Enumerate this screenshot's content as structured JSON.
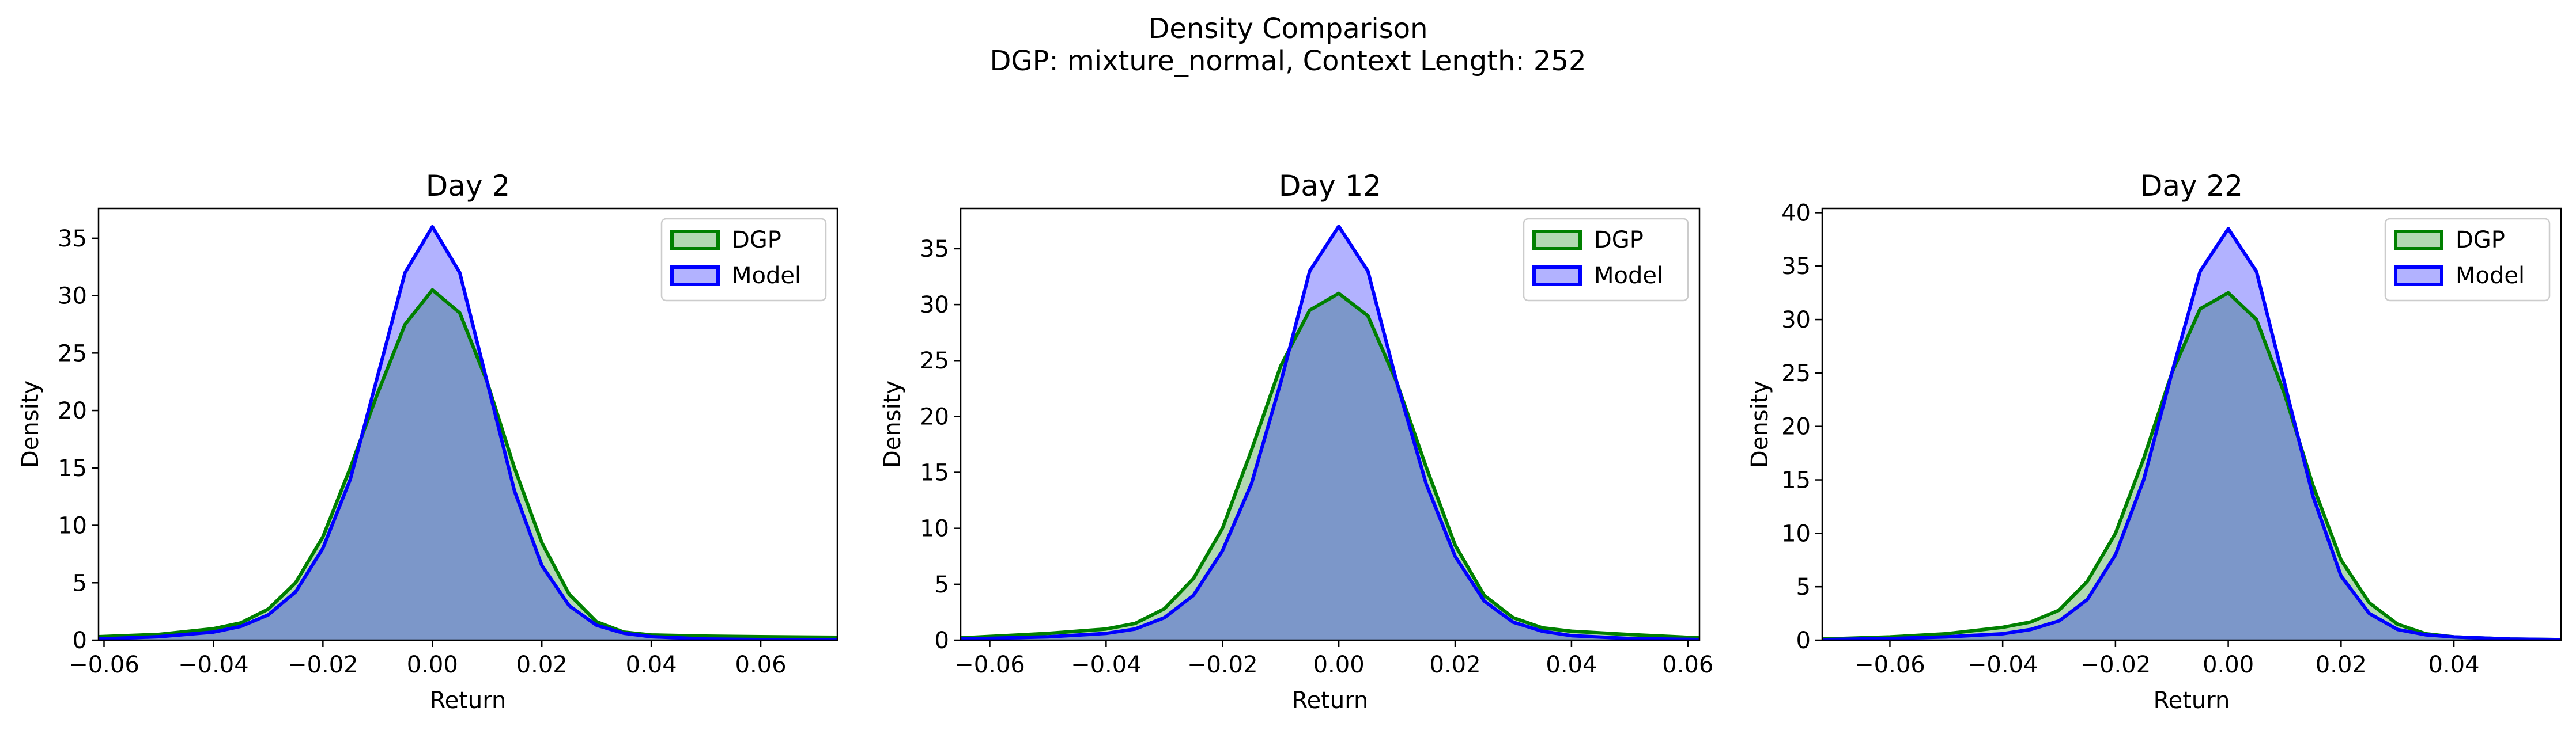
{
  "figure": {
    "title_line1": "Density Comparison",
    "title_line2": "DGP: mixture_normal, Context Length: 252"
  },
  "colors": {
    "dgp_line": "#008000",
    "dgp_fill": "#b2d8b2",
    "model_line": "#0000ff",
    "model_fill": "#b2b2ff",
    "overlap_fill": "#7f98c8"
  },
  "chart_data": [
    {
      "type": "area",
      "title": "Day 2",
      "xlabel": "Return",
      "ylabel": "Density",
      "xlim": [
        -0.061,
        0.074
      ],
      "ylim": [
        0,
        37.6
      ],
      "xticks": [
        -0.06,
        -0.04,
        -0.02,
        0.0,
        0.02,
        0.04,
        0.06
      ],
      "xtick_labels": [
        "−0.06",
        "−0.04",
        "−0.02",
        "0.00",
        "0.02",
        "0.04",
        "0.06"
      ],
      "yticks": [
        0,
        5,
        10,
        15,
        20,
        25,
        30,
        35
      ],
      "ytick_labels": [
        "0",
        "5",
        "10",
        "15",
        "20",
        "25",
        "30",
        "35"
      ],
      "legend": {
        "position": "top-right",
        "entries": [
          "DGP",
          "Model"
        ]
      },
      "series": [
        {
          "name": "DGP",
          "x": [
            -0.061,
            -0.05,
            -0.04,
            -0.035,
            -0.03,
            -0.025,
            -0.02,
            -0.015,
            -0.01,
            -0.005,
            0,
            0.005,
            0.01,
            0.015,
            0.02,
            0.025,
            0.03,
            0.035,
            0.04,
            0.05,
            0.06,
            0.074
          ],
          "y": [
            0.3,
            0.5,
            1.0,
            1.5,
            2.7,
            5.0,
            9.0,
            15.0,
            21.5,
            27.5,
            30.5,
            28.5,
            22.5,
            15.0,
            8.5,
            4.0,
            1.6,
            0.7,
            0.45,
            0.35,
            0.3,
            0.25
          ]
        },
        {
          "name": "Model",
          "x": [
            -0.061,
            -0.05,
            -0.04,
            -0.035,
            -0.03,
            -0.025,
            -0.02,
            -0.015,
            -0.01,
            -0.005,
            0,
            0.005,
            0.01,
            0.015,
            0.02,
            0.025,
            0.03,
            0.035,
            0.04,
            0.05,
            0.06,
            0.074
          ],
          "y": [
            0.1,
            0.3,
            0.7,
            1.2,
            2.2,
            4.2,
            8.0,
            14.0,
            23.0,
            32.0,
            36.0,
            32.0,
            22.5,
            13.0,
            6.5,
            3.0,
            1.3,
            0.6,
            0.3,
            0.1,
            0.05,
            0.02
          ]
        }
      ]
    },
    {
      "type": "area",
      "title": "Day 12",
      "xlabel": "Return",
      "ylabel": "Density",
      "xlim": [
        -0.065,
        0.062
      ],
      "ylim": [
        0,
        38.6
      ],
      "xticks": [
        -0.06,
        -0.04,
        -0.02,
        0.0,
        0.02,
        0.04,
        0.06
      ],
      "xtick_labels": [
        "−0.06",
        "−0.04",
        "−0.02",
        "0.00",
        "0.02",
        "0.04",
        "0.06"
      ],
      "yticks": [
        0,
        5,
        10,
        15,
        20,
        25,
        30,
        35
      ],
      "ytick_labels": [
        "0",
        "5",
        "10",
        "15",
        "20",
        "25",
        "30",
        "35"
      ],
      "legend": {
        "position": "top-right",
        "entries": [
          "DGP",
          "Model"
        ]
      },
      "series": [
        {
          "name": "DGP",
          "x": [
            -0.065,
            -0.05,
            -0.04,
            -0.035,
            -0.03,
            -0.025,
            -0.02,
            -0.015,
            -0.01,
            -0.005,
            0,
            0.005,
            0.01,
            0.015,
            0.02,
            0.025,
            0.03,
            0.035,
            0.04,
            0.05,
            0.062
          ],
          "y": [
            0.2,
            0.6,
            1.0,
            1.5,
            2.8,
            5.5,
            10.0,
            17.0,
            24.5,
            29.5,
            31.0,
            29.0,
            23.0,
            15.5,
            8.5,
            4.0,
            2.0,
            1.1,
            0.8,
            0.5,
            0.2
          ]
        },
        {
          "name": "Model",
          "x": [
            -0.065,
            -0.05,
            -0.04,
            -0.035,
            -0.03,
            -0.025,
            -0.02,
            -0.015,
            -0.01,
            -0.005,
            0,
            0.005,
            0.01,
            0.015,
            0.02,
            0.025,
            0.03,
            0.035,
            0.04,
            0.05,
            0.062
          ],
          "y": [
            0.1,
            0.3,
            0.6,
            1.0,
            2.0,
            4.0,
            8.0,
            14.0,
            23.0,
            33.0,
            37.0,
            33.0,
            23.0,
            14.0,
            7.5,
            3.5,
            1.6,
            0.8,
            0.4,
            0.15,
            0.05
          ]
        }
      ]
    },
    {
      "type": "area",
      "title": "Day 22",
      "xlabel": "Return",
      "ylabel": "Density",
      "xlim": [
        -0.072,
        0.059
      ],
      "ylim": [
        0,
        40.4
      ],
      "xticks": [
        -0.06,
        -0.04,
        -0.02,
        0.0,
        0.02,
        0.04
      ],
      "xtick_labels": [
        "−0.06",
        "−0.04",
        "−0.02",
        "0.00",
        "0.02",
        "0.04"
      ],
      "yticks": [
        0,
        5,
        10,
        15,
        20,
        25,
        30,
        35,
        40
      ],
      "ytick_labels": [
        "0",
        "5",
        "10",
        "15",
        "20",
        "25",
        "30",
        "35",
        "40"
      ],
      "legend": {
        "position": "top-right",
        "entries": [
          "DGP",
          "Model"
        ]
      },
      "series": [
        {
          "name": "DGP",
          "x": [
            -0.072,
            -0.06,
            -0.05,
            -0.04,
            -0.035,
            -0.03,
            -0.025,
            -0.02,
            -0.015,
            -0.01,
            -0.005,
            0,
            0.005,
            0.01,
            0.015,
            0.02,
            0.025,
            0.03,
            0.035,
            0.04,
            0.05,
            0.059
          ],
          "y": [
            0.1,
            0.3,
            0.6,
            1.2,
            1.7,
            2.8,
            5.5,
            10.0,
            17.0,
            25.0,
            31.0,
            32.5,
            30.0,
            23.0,
            14.5,
            7.5,
            3.5,
            1.5,
            0.6,
            0.3,
            0.1,
            0.05
          ]
        },
        {
          "name": "Model",
          "x": [
            -0.072,
            -0.06,
            -0.05,
            -0.04,
            -0.035,
            -0.03,
            -0.025,
            -0.02,
            -0.015,
            -0.01,
            -0.005,
            0,
            0.005,
            0.01,
            0.015,
            0.02,
            0.025,
            0.03,
            0.035,
            0.04,
            0.05,
            0.059
          ],
          "y": [
            0.05,
            0.15,
            0.3,
            0.6,
            1.0,
            1.8,
            3.8,
            8.0,
            15.0,
            25.0,
            34.5,
            38.5,
            34.5,
            24.0,
            13.5,
            6.0,
            2.5,
            1.0,
            0.5,
            0.3,
            0.1,
            0.05
          ]
        }
      ]
    }
  ]
}
